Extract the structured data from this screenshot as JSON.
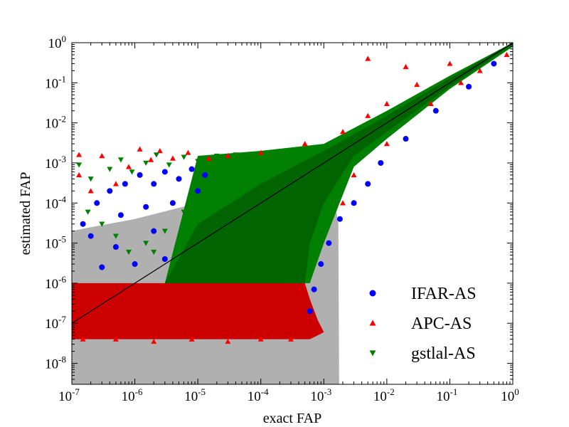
{
  "chart_data": {
    "type": "scatter",
    "xlabel": "exact FAP",
    "ylabel": "estimated FAP",
    "xscale": "log",
    "yscale": "log",
    "xlim": [
      1e-07,
      1
    ],
    "ylim": [
      3e-09,
      1
    ],
    "x_ticks": [
      {
        "base": "10",
        "exp": "-7"
      },
      {
        "base": "10",
        "exp": "-6"
      },
      {
        "base": "10",
        "exp": "-5"
      },
      {
        "base": "10",
        "exp": "-4"
      },
      {
        "base": "10",
        "exp": "-3"
      },
      {
        "base": "10",
        "exp": "-2"
      },
      {
        "base": "10",
        "exp": "-1"
      },
      {
        "base": "10",
        "exp": "0"
      }
    ],
    "y_ticks": [
      {
        "base": "10",
        "exp": "-8"
      },
      {
        "base": "10",
        "exp": "-7"
      },
      {
        "base": "10",
        "exp": "-6"
      },
      {
        "base": "10",
        "exp": "-5"
      },
      {
        "base": "10",
        "exp": "-4"
      },
      {
        "base": "10",
        "exp": "-3"
      },
      {
        "base": "10",
        "exp": "-2"
      },
      {
        "base": "10",
        "exp": "-1"
      },
      {
        "base": "10",
        "exp": "0"
      }
    ],
    "legend_position": "bottom-right",
    "series": [
      {
        "name": "IFAR-AS",
        "marker": "circle",
        "color": "#0000ff"
      },
      {
        "name": "APC-AS",
        "marker": "triangle-up",
        "color": "#ff0000"
      },
      {
        "name": "gstlal-AS",
        "marker": "triangle-down",
        "color": "#008000"
      }
    ],
    "reference_line": {
      "x": [
        1e-07,
        1
      ],
      "y": [
        1e-07,
        1
      ],
      "color": "#000000"
    },
    "bands": [
      {
        "fill": "#b0b0b0",
        "x": [
          1e-07,
          2e-07,
          1e-06,
          1e-05,
          0.0001,
          0.0003,
          0.0006,
          0.001,
          0.0015,
          0.0017,
          0.00175,
          1e-07
        ],
        "y": [
          2e-05,
          2.5e-05,
          4e-05,
          0.0001,
          0.0001,
          0.0001,
          0.0001,
          0.0001,
          0.0001,
          3e-05,
          3e-09,
          3e-09
        ]
      },
      {
        "fill": "#cc0000",
        "x": [
          1e-07,
          0.0005,
          0.0006,
          0.0008,
          0.001,
          0.0008,
          0.0006,
          0.0004,
          1e-07
        ],
        "y": [
          1e-06,
          1e-06,
          4e-07,
          1.2e-07,
          6e-08,
          5e-08,
          4e-08,
          4e-08,
          4e-08
        ]
      },
      {
        "fill": "#008000",
        "x": [
          1e-07,
          3e-06,
          1e-05,
          0.0001,
          0.001,
          0.01,
          0.1,
          1,
          1,
          0.1,
          0.01,
          0.003,
          0.001,
          0.0006,
          0.0004,
          1e-07
        ],
        "y": [
          1e-06,
          1e-06,
          0.0015,
          0.002,
          0.003,
          0.02,
          0.15,
          1,
          0.8,
          0.07,
          0.004,
          0.0008,
          1e-05,
          1e-06,
          1e-06,
          1e-06
        ]
      },
      {
        "fill": "#006400",
        "x": [
          3e-06,
          1e-05,
          0.0001,
          0.001,
          0.01,
          0.1,
          1,
          1,
          0.1,
          0.01,
          0.003,
          0.001,
          0.0006,
          0.0005,
          3e-06
        ],
        "y": [
          1e-06,
          3e-05,
          0.0003,
          0.002,
          0.015,
          0.13,
          1,
          0.9,
          0.08,
          0.006,
          0.0015,
          0.0001,
          1e-05,
          1e-06,
          1e-06
        ]
      }
    ],
    "points": {
      "IFAR-AS": [
        [
          1.5e-07,
          3e-05
        ],
        [
          2.5e-07,
          0.0001
        ],
        [
          4e-07,
          0.0002
        ],
        [
          7e-07,
          0.0003
        ],
        [
          1.2e-06,
          0.0005
        ],
        [
          2e-06,
          0.0003
        ],
        [
          3e-06,
          0.0006
        ],
        [
          5e-06,
          0.0004
        ],
        [
          8e-06,
          0.0007
        ],
        [
          1.3e-05,
          0.0005
        ],
        [
          2e-07,
          1.5e-05
        ],
        [
          6e-07,
          5e-05
        ],
        [
          1.5e-06,
          8e-05
        ],
        [
          4e-06,
          0.0001
        ],
        [
          1e-05,
          0.0002
        ],
        [
          2e-06,
          2e-05
        ],
        [
          5e-07,
          8e-06
        ],
        [
          1e-06,
          3e-06
        ],
        [
          3e-07,
          2.5e-06
        ],
        [
          3e-06,
          4e-06
        ],
        [
          0.0006,
          2e-07
        ],
        [
          0.0007,
          7e-07
        ],
        [
          0.0009,
          3e-06
        ],
        [
          0.0012,
          1e-05
        ],
        [
          0.0018,
          4e-05
        ],
        [
          0.003,
          0.0001
        ],
        [
          0.005,
          0.0003
        ],
        [
          0.008,
          0.001
        ],
        [
          0.02,
          0.004
        ],
        [
          0.06,
          0.02
        ],
        [
          0.2,
          0.08
        ],
        [
          0.5,
          0.3
        ]
      ],
      "APC-AS": [
        [
          1.3e-07,
          0.0016
        ],
        [
          1.3e-07,
          0.0005
        ],
        [
          2e-07,
          0.0002
        ],
        [
          3e-07,
          0.0015
        ],
        [
          5e-07,
          0.0003
        ],
        [
          8e-07,
          0.0008
        ],
        [
          1.2e-06,
          0.0022
        ],
        [
          1.8e-06,
          0.0012
        ],
        [
          2.5e-06,
          0.002
        ],
        [
          4e-06,
          0.0013
        ],
        [
          7e-06,
          0.0018
        ],
        [
          1.5e-05,
          0.0013
        ],
        [
          3e-05,
          0.0015
        ],
        [
          0.0001,
          0.0018
        ],
        [
          0.0005,
          0.003
        ],
        [
          0.002,
          0.006
        ],
        [
          0.005,
          0.015
        ],
        [
          0.01,
          0.03
        ],
        [
          0.03,
          0.09
        ],
        [
          0.1,
          0.3
        ],
        [
          0.02,
          0.25
        ],
        [
          0.005,
          0.4
        ],
        [
          0.15,
          0.1
        ],
        [
          1.5e-07,
          4e-08
        ],
        [
          5e-07,
          4e-08
        ],
        [
          2e-06,
          3.5e-08
        ],
        [
          8e-06,
          4e-08
        ],
        [
          3e-05,
          3.5e-08
        ],
        [
          0.0001,
          4e-08
        ],
        [
          0.0003,
          4e-08
        ],
        [
          0.002,
          0.0001
        ],
        [
          0.003,
          0.0005
        ],
        [
          0.01,
          0.003
        ],
        [
          0.05,
          0.03
        ],
        [
          0.3,
          0.2
        ],
        [
          0.8,
          0.5
        ]
      ],
      "gstlal-AS": [
        [
          1.3e-07,
          0.0009
        ],
        [
          2e-07,
          0.0004
        ],
        [
          4e-07,
          0.0007
        ],
        [
          6e-07,
          0.0012
        ],
        [
          9e-07,
          0.0006
        ],
        [
          1.5e-06,
          0.001
        ],
        [
          2.2e-06,
          0.0016
        ],
        [
          3.5e-06,
          0.0009
        ],
        [
          6e-06,
          0.0014
        ],
        [
          1e-05,
          0.0011
        ],
        [
          2e-05,
          0.0015
        ],
        [
          4e-05,
          0.0016
        ],
        [
          1.8e-07,
          6e-05
        ],
        [
          3e-07,
          3e-05
        ],
        [
          5e-07,
          1.5e-05
        ],
        [
          8e-07,
          6e-06
        ],
        [
          1.5e-06,
          1e-05
        ],
        [
          3e-06,
          2e-05
        ],
        [
          6e-06,
          6e-05
        ],
        [
          1e-05,
          0.0001
        ],
        [
          1.5e-05,
          0.00025
        ],
        [
          2e-06,
          6e-06
        ],
        [
          4e-06,
          3e-06
        ]
      ]
    }
  }
}
